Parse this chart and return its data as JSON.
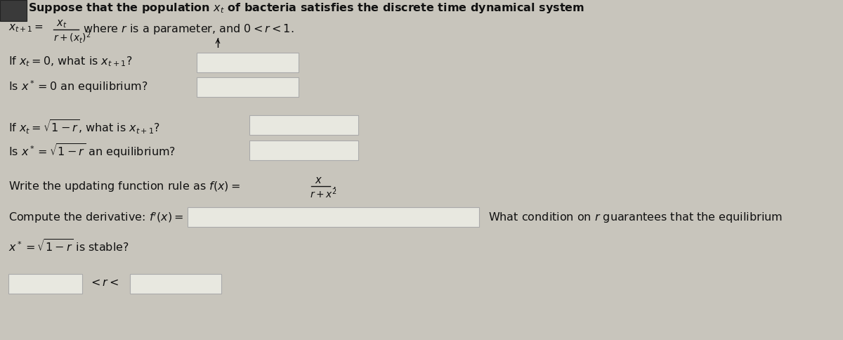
{
  "bg_color": "#c8c5bc",
  "text_color": "#111111",
  "box_color": "#e8e8e0",
  "box_edge_color": "#aaaaaa",
  "dark_box_color": "#555555",
  "figsize": [
    12.0,
    4.84
  ],
  "dpi": 100,
  "fontsize": 11.5,
  "title": "Suppose that the population $x_t$ of bacteria satisfies the discrete time dynamical system",
  "sys_line": "$x_{t+1} =\\dfrac{x_t}{r+(x_t)^2}$   where $r$ is a parameter, and $0 < r < 1$.",
  "q1": "If $x_t = 0$, what is $x_{t+1}$?",
  "q2": "Is $x^* = 0$ an equilibrium?",
  "q3": "If $x_t = \\sqrt{1-r}$, what is $x_{t+1}$?",
  "q4": "Is $x^* = \\sqrt{1-r}$ an equilibrium?",
  "q5": "Write the updating function rule as $f(x) = \\dfrac{x}{r+x^2}$.",
  "q6_left": "Compute the derivative: $f'(x) =$",
  "q6_right": "What condition on $r$ guarantees that the equilibrium",
  "q7": "$x^* = \\sqrt{1-r}$ is stable?",
  "q8": "$< r <$"
}
